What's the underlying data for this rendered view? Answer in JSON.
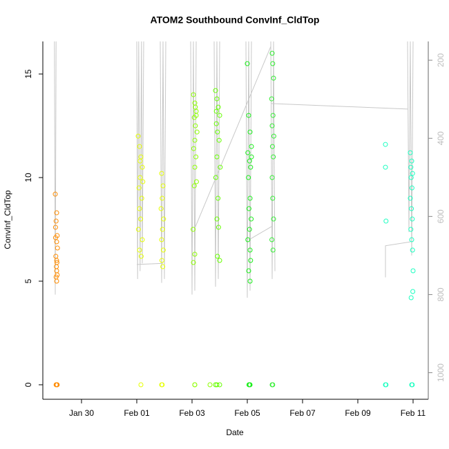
{
  "chart_data": {
    "type": "scatter",
    "title": "ATOM2 Southbound ConvInf_CldTop",
    "xlabel": "Date",
    "ylabel": "ConvInf_CldTop",
    "xlim": [
      28.6,
      42.55
    ],
    "xticks": [
      {
        "value": 30,
        "label": "Jan 30"
      },
      {
        "value": 32,
        "label": "Feb 01"
      },
      {
        "value": 34,
        "label": "Feb 03"
      },
      {
        "value": 36,
        "label": "Feb 05"
      },
      {
        "value": 38,
        "label": "Feb 07"
      },
      {
        "value": 40,
        "label": "Feb 09"
      },
      {
        "value": 42,
        "label": "Feb 11"
      }
    ],
    "ylim": [
      -0.7,
      16.57
    ],
    "yticks": [
      0,
      5,
      10,
      15
    ],
    "y2lim": [
      1068,
      152
    ],
    "y2ticks": [
      200,
      400,
      600,
      800,
      1000
    ],
    "series": [
      {
        "type": "line",
        "axis": "y2",
        "color": "#c8c8c8",
        "x": [
          29.02,
          29.05,
          29.08,
          null,
          32.0,
          32.03,
          32.07,
          32.12,
          32.17,
          32.2,
          32.25,
          null,
          32.0,
          32.95,
          null,
          32.85,
          32.9,
          32.95,
          33.0,
          33.05,
          null,
          33.95,
          34.0,
          34.05,
          34.1,
          34.15,
          null,
          34.1,
          36.85,
          null,
          34.8,
          34.85,
          34.9,
          34.95,
          35.0,
          null,
          35.95,
          36.0,
          36.05,
          36.1,
          36.15,
          null,
          36.05,
          36.9,
          null,
          36.85,
          36.9,
          36.95,
          37.0,
          null,
          36.85,
          41.8,
          null,
          41.0,
          41.0,
          41.9,
          null,
          41.8,
          41.85,
          41.9,
          41.95,
          42.0
        ],
        "values": [
          152,
          800,
          152,
          null,
          152,
          760,
          152,
          740,
          152,
          720,
          152,
          null,
          723,
          720,
          null,
          152,
          770,
          152,
          760,
          152,
          null,
          152,
          800,
          152,
          790,
          152,
          null,
          630,
          165,
          null,
          152,
          780,
          152,
          760,
          152,
          null,
          152,
          808,
          152,
          790,
          152,
          null,
          660,
          625,
          null,
          152,
          760,
          152,
          740,
          null,
          311,
          325,
          null,
          756,
          675,
          665,
          null,
          152,
          640,
          152,
          700,
          152
        ]
      },
      {
        "color": "#ff8c00",
        "x": [
          29.05,
          29.1,
          29.08,
          29.12,
          29.06,
          29.1,
          29.13,
          29.07,
          29.11,
          29.09,
          29.1,
          29.12,
          29.08,
          29.1,
          29.06,
          29.1,
          29.12,
          29.08,
          29.1,
          29.11
        ],
        "values": [
          9.2,
          8.3,
          7.9,
          7.2,
          7.1,
          6.9,
          6.6,
          6.2,
          5.9,
          5.7,
          5.5,
          5.3,
          5.2,
          5.0,
          7.6,
          6.0,
          0,
          0,
          0,
          0
        ]
      },
      {
        "color": "#e6ff00",
        "x": [
          32.05,
          32.1,
          32.15,
          32.2,
          32.12,
          32.08,
          32.18,
          32.1,
          32.14,
          32.06,
          32.2,
          32.1,
          32.16,
          32.12,
          32.22,
          32.9,
          32.95,
          32.92,
          32.88,
          32.97,
          32.93,
          32.9,
          32.96,
          32.91,
          32.94,
          32.15,
          32.9,
          32.92
        ],
        "values": [
          12.0,
          11.5,
          11.0,
          10.5,
          10.0,
          9.5,
          9.0,
          8.5,
          8.0,
          7.5,
          7.0,
          6.5,
          6.2,
          10.8,
          9.8,
          10.2,
          9.6,
          9.0,
          8.5,
          8.0,
          7.5,
          7.0,
          6.5,
          6.0,
          5.7,
          0,
          0,
          0
        ]
      },
      {
        "color": "#8cff00",
        "x": [
          34.05,
          34.1,
          34.15,
          34.08,
          34.12,
          34.18,
          34.1,
          34.06,
          34.14,
          34.1,
          34.16,
          34.08,
          34.12,
          34.04,
          34.1,
          34.05,
          34.15,
          34.1,
          34.65,
          34.1
        ],
        "values": [
          14.0,
          13.6,
          13.2,
          12.9,
          12.5,
          12.2,
          11.8,
          11.4,
          11.0,
          10.5,
          9.8,
          9.6,
          13.4,
          7.5,
          6.3,
          5.9,
          13.0,
          0,
          0,
          0
        ]
      },
      {
        "color": "#66ff00",
        "x": [
          34.85,
          34.9,
          34.95,
          35.0,
          34.88,
          34.92,
          34.98,
          34.9,
          35.02,
          34.86,
          34.94,
          34.9,
          34.96,
          34.92,
          35.0,
          34.88,
          34.9,
          35.0,
          34.85
        ],
        "values": [
          14.2,
          13.8,
          13.4,
          13.0,
          12.6,
          12.2,
          11.8,
          11.0,
          10.5,
          10.0,
          9.0,
          8.0,
          7.6,
          6.2,
          6.0,
          13.2,
          0,
          0,
          0
        ]
      },
      {
        "color": "#1aee1a",
        "x": [
          36.0,
          36.05,
          36.1,
          36.15,
          36.02,
          36.08,
          36.12,
          36.04,
          36.1,
          36.06,
          36.14,
          36.08,
          36.02,
          36.1,
          36.12,
          36.05,
          36.1,
          36.15,
          36.06,
          36.08,
          36.1
        ],
        "values": [
          15.5,
          13.0,
          12.2,
          11.5,
          11.2,
          10.8,
          10.5,
          10.0,
          9.0,
          8.5,
          8.0,
          7.5,
          7.0,
          6.5,
          6.0,
          5.5,
          5.0,
          11.0,
          0,
          0,
          0
        ]
      },
      {
        "color": "#33ee33",
        "x": [
          36.9,
          36.92,
          36.95,
          36.88,
          36.93,
          36.9,
          36.96,
          36.91,
          36.94,
          36.9,
          36.92,
          36.95,
          36.89,
          36.93,
          36.9,
          36.92
        ],
        "values": [
          16.0,
          15.5,
          14.8,
          13.8,
          13.0,
          12.5,
          12.0,
          11.5,
          11.0,
          10.0,
          9.0,
          8.0,
          7.0,
          6.5,
          0,
          0
        ]
      },
      {
        "color": "#1affc0",
        "x": [
          41.0,
          41.0,
          41.02,
          41.9,
          41.95,
          41.92,
          41.98,
          41.93,
          41.96,
          41.9,
          41.94,
          41.97,
          41.92,
          41.95,
          41.98,
          42.0,
          41.99,
          41.93,
          41.0,
          41.02,
          41.95,
          41.97
        ],
        "values": [
          11.6,
          10.5,
          7.9,
          11.2,
          10.8,
          10.5,
          10.2,
          10.0,
          9.5,
          9.0,
          8.5,
          8.0,
          7.5,
          7.0,
          6.5,
          5.5,
          4.5,
          4.2,
          0,
          0,
          0,
          0
        ]
      }
    ]
  }
}
